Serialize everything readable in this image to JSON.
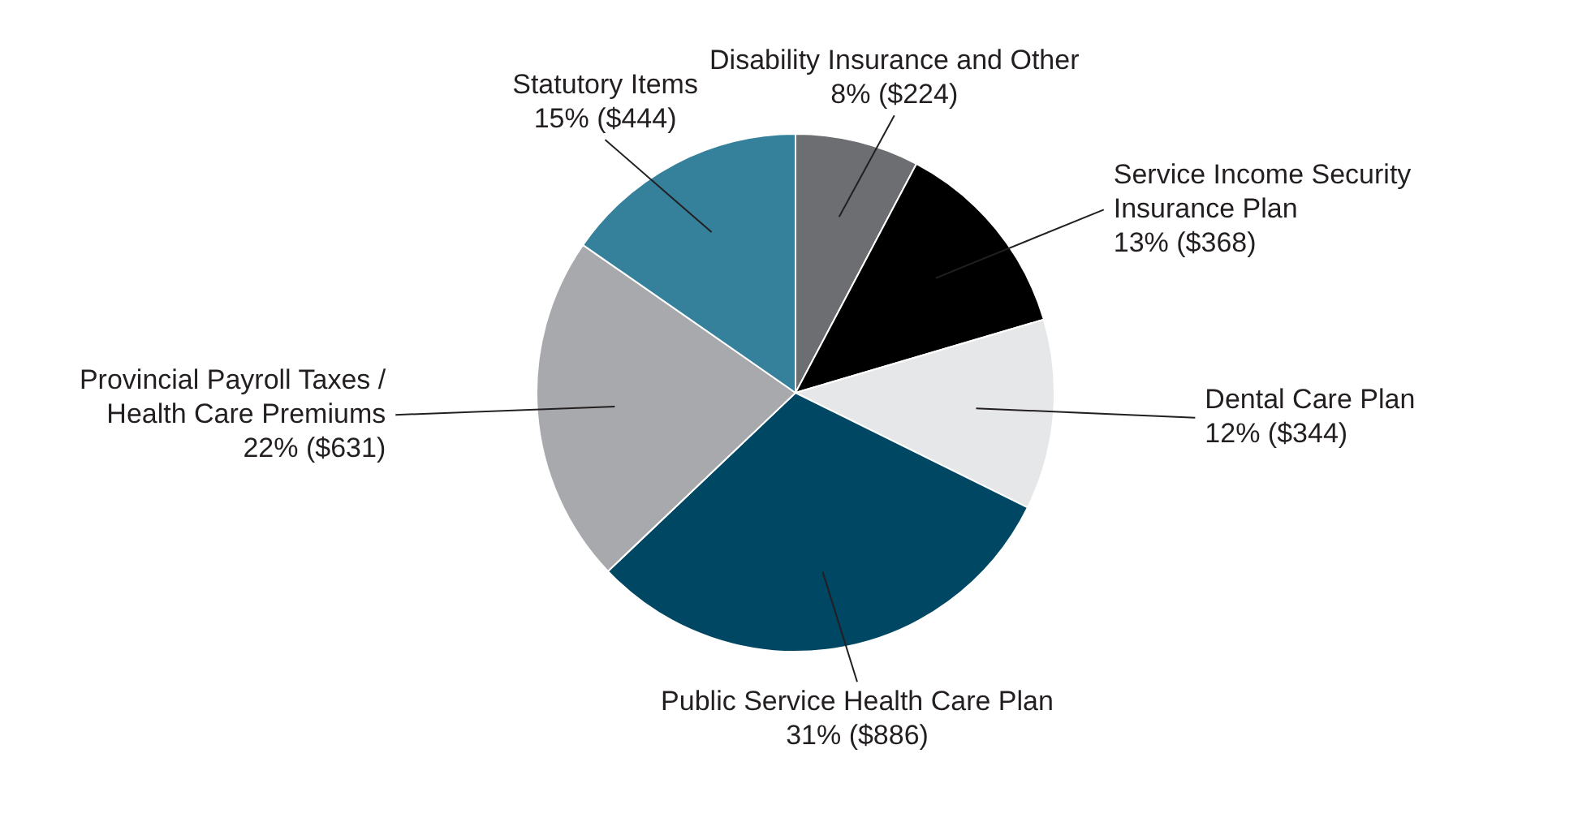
{
  "chart_data": {
    "type": "pie",
    "categories": [
      "Disability Insurance and Other",
      "Service Income Security Insurance Plan",
      "Dental Care Plan",
      "Public Service Health Care Plan",
      "Provincial Payroll Taxes / Health Care Premiums",
      "Statutory Items"
    ],
    "values": [
      224,
      368,
      344,
      886,
      631,
      444
    ],
    "value_labels": [
      "8% ($224)",
      "13% ($368)",
      "12% ($344)",
      "31% ($886)",
      "22% ($631)",
      "15% ($444)"
    ],
    "colors": [
      "#6d6e71",
      "#000000",
      "#e6e7e8",
      "#004763",
      "#a7a9ac",
      "#35819b"
    ],
    "legend": false
  }
}
